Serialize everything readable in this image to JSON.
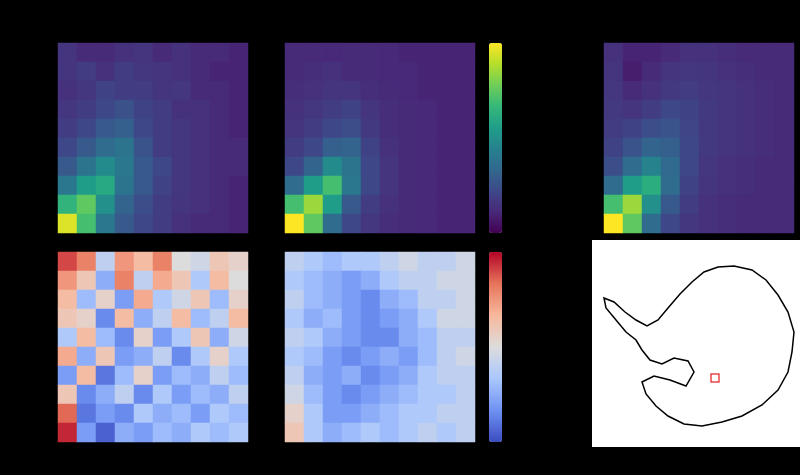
{
  "chart_data": [
    {
      "type": "heatmap",
      "tick_labels": false,
      "color_range": [
        0,
        1
      ],
      "cells": [
        [
          0.15,
          0.12,
          0.12,
          0.14,
          0.15,
          0.12,
          0.14,
          0.12,
          0.12,
          0.1
        ],
        [
          0.15,
          0.18,
          0.14,
          0.18,
          0.16,
          0.15,
          0.14,
          0.12,
          0.1,
          0.1
        ],
        [
          0.14,
          0.16,
          0.2,
          0.18,
          0.18,
          0.15,
          0.16,
          0.12,
          0.12,
          0.1
        ],
        [
          0.16,
          0.18,
          0.22,
          0.25,
          0.2,
          0.18,
          0.14,
          0.14,
          0.12,
          0.1
        ],
        [
          0.18,
          0.22,
          0.28,
          0.3,
          0.22,
          0.18,
          0.16,
          0.14,
          0.12,
          0.1
        ],
        [
          0.22,
          0.28,
          0.35,
          0.38,
          0.26,
          0.18,
          0.16,
          0.14,
          0.12,
          0.12
        ],
        [
          0.28,
          0.38,
          0.48,
          0.4,
          0.28,
          0.22,
          0.16,
          0.14,
          0.12,
          0.12
        ],
        [
          0.4,
          0.55,
          0.6,
          0.38,
          0.28,
          0.2,
          0.16,
          0.14,
          0.12,
          0.1
        ],
        [
          0.65,
          0.75,
          0.5,
          0.32,
          0.24,
          0.18,
          0.15,
          0.14,
          0.12,
          0.1
        ],
        [
          0.95,
          0.7,
          0.4,
          0.28,
          0.22,
          0.18,
          0.14,
          0.12,
          0.12,
          0.1
        ]
      ]
    },
    {
      "type": "heatmap",
      "tick_labels": false,
      "color_range": [
        0,
        1
      ],
      "cells": [
        [
          0.12,
          0.12,
          0.11,
          0.12,
          0.12,
          0.11,
          0.1,
          0.1,
          0.1,
          0.1
        ],
        [
          0.12,
          0.13,
          0.14,
          0.12,
          0.12,
          0.11,
          0.11,
          0.1,
          0.1,
          0.1
        ],
        [
          0.13,
          0.14,
          0.15,
          0.15,
          0.13,
          0.12,
          0.11,
          0.1,
          0.1,
          0.1
        ],
        [
          0.14,
          0.16,
          0.18,
          0.2,
          0.15,
          0.13,
          0.12,
          0.11,
          0.1,
          0.1
        ],
        [
          0.15,
          0.18,
          0.22,
          0.24,
          0.17,
          0.13,
          0.12,
          0.11,
          0.1,
          0.1
        ],
        [
          0.18,
          0.22,
          0.3,
          0.32,
          0.2,
          0.14,
          0.12,
          0.11,
          0.1,
          0.1
        ],
        [
          0.22,
          0.32,
          0.48,
          0.38,
          0.22,
          0.15,
          0.12,
          0.11,
          0.1,
          0.1
        ],
        [
          0.35,
          0.55,
          0.7,
          0.4,
          0.22,
          0.15,
          0.12,
          0.11,
          0.1,
          0.1
        ],
        [
          0.7,
          0.85,
          0.55,
          0.28,
          0.18,
          0.14,
          0.12,
          0.11,
          0.1,
          0.1
        ],
        [
          1.0,
          0.75,
          0.35,
          0.22,
          0.16,
          0.13,
          0.12,
          0.11,
          0.1,
          0.1
        ]
      ]
    },
    {
      "type": "heatmap",
      "tick_labels": false,
      "color_range": [
        0,
        1
      ],
      "cells": [
        [
          0.14,
          0.1,
          0.1,
          0.12,
          0.14,
          0.14,
          0.13,
          0.12,
          0.12,
          0.12
        ],
        [
          0.15,
          0.08,
          0.12,
          0.15,
          0.16,
          0.15,
          0.14,
          0.13,
          0.12,
          0.12
        ],
        [
          0.16,
          0.12,
          0.14,
          0.17,
          0.18,
          0.16,
          0.15,
          0.14,
          0.13,
          0.12
        ],
        [
          0.17,
          0.15,
          0.18,
          0.22,
          0.2,
          0.17,
          0.15,
          0.14,
          0.13,
          0.12
        ],
        [
          0.18,
          0.2,
          0.24,
          0.26,
          0.21,
          0.17,
          0.15,
          0.14,
          0.13,
          0.12
        ],
        [
          0.2,
          0.26,
          0.32,
          0.3,
          0.22,
          0.17,
          0.15,
          0.14,
          0.13,
          0.12
        ],
        [
          0.24,
          0.35,
          0.45,
          0.34,
          0.22,
          0.16,
          0.14,
          0.13,
          0.12,
          0.12
        ],
        [
          0.35,
          0.55,
          0.62,
          0.35,
          0.2,
          0.15,
          0.14,
          0.13,
          0.12,
          0.12
        ],
        [
          0.7,
          0.85,
          0.5,
          0.28,
          0.18,
          0.14,
          0.13,
          0.12,
          0.12,
          0.12
        ],
        [
          1.0,
          0.75,
          0.35,
          0.22,
          0.16,
          0.14,
          0.13,
          0.12,
          0.12,
          0.12
        ]
      ]
    },
    {
      "type": "heatmap",
      "tick_labels": false,
      "color_range": [
        -1,
        1
      ],
      "cells": [
        [
          0.8,
          0.6,
          -0.2,
          0.5,
          0.3,
          0.6,
          0.0,
          -0.1,
          0.2,
          0.1
        ],
        [
          0.5,
          0.2,
          -0.5,
          0.6,
          -0.2,
          0.4,
          0.2,
          -0.3,
          0.3,
          0.0
        ],
        [
          0.3,
          -0.4,
          0.1,
          -0.6,
          0.4,
          -0.3,
          -0.1,
          0.2,
          -0.4,
          0.1
        ],
        [
          0.2,
          0.1,
          -0.7,
          0.3,
          -0.5,
          -0.2,
          0.3,
          -0.4,
          -0.2,
          0.3
        ],
        [
          -0.3,
          0.3,
          -0.4,
          -0.7,
          0.1,
          -0.6,
          -0.3,
          0.2,
          -0.5,
          -0.1
        ],
        [
          0.4,
          -0.5,
          0.2,
          -0.6,
          -0.5,
          -0.2,
          -0.7,
          -0.3,
          0.1,
          -0.3
        ],
        [
          -0.6,
          0.3,
          -0.8,
          -0.4,
          0.1,
          -0.6,
          -0.4,
          -0.5,
          -0.2,
          -0.4
        ],
        [
          0.2,
          -0.7,
          -0.5,
          -0.2,
          -0.7,
          -0.3,
          -0.6,
          -0.4,
          -0.5,
          -0.2
        ],
        [
          0.7,
          -0.8,
          -0.6,
          -0.7,
          -0.3,
          -0.5,
          -0.4,
          -0.6,
          -0.3,
          -0.4
        ],
        [
          0.9,
          -0.6,
          -0.9,
          -0.5,
          -0.6,
          -0.4,
          -0.5,
          -0.3,
          -0.4,
          -0.3
        ]
      ]
    },
    {
      "type": "heatmap",
      "tick_labels": false,
      "color_range": [
        -1,
        1
      ],
      "cells": [
        [
          -0.2,
          -0.3,
          -0.4,
          -0.3,
          -0.3,
          -0.2,
          -0.1,
          -0.2,
          -0.2,
          -0.1
        ],
        [
          -0.3,
          -0.4,
          -0.5,
          -0.6,
          -0.5,
          -0.3,
          -0.2,
          -0.2,
          -0.1,
          -0.1
        ],
        [
          -0.2,
          -0.4,
          -0.5,
          -0.6,
          -0.7,
          -0.5,
          -0.4,
          -0.2,
          -0.2,
          -0.1
        ],
        [
          -0.3,
          -0.5,
          -0.4,
          -0.6,
          -0.7,
          -0.6,
          -0.5,
          -0.3,
          -0.1,
          -0.1
        ],
        [
          -0.2,
          -0.3,
          -0.5,
          -0.6,
          -0.7,
          -0.7,
          -0.5,
          -0.4,
          -0.2,
          -0.2
        ],
        [
          -0.3,
          -0.4,
          -0.6,
          -0.7,
          -0.6,
          -0.5,
          -0.6,
          -0.4,
          -0.2,
          -0.1
        ],
        [
          -0.2,
          -0.5,
          -0.6,
          -0.5,
          -0.7,
          -0.6,
          -0.5,
          -0.3,
          -0.2,
          -0.2
        ],
        [
          -0.1,
          -0.4,
          -0.6,
          -0.7,
          -0.6,
          -0.5,
          -0.4,
          -0.3,
          -0.3,
          -0.2
        ],
        [
          0.1,
          -0.3,
          -0.6,
          -0.6,
          -0.5,
          -0.4,
          -0.3,
          -0.3,
          -0.2,
          -0.2
        ],
        [
          0.2,
          -0.3,
          -0.5,
          -0.4,
          -0.3,
          -0.4,
          -0.3,
          -0.2,
          -0.3,
          -0.2
        ]
      ]
    }
  ]
}
